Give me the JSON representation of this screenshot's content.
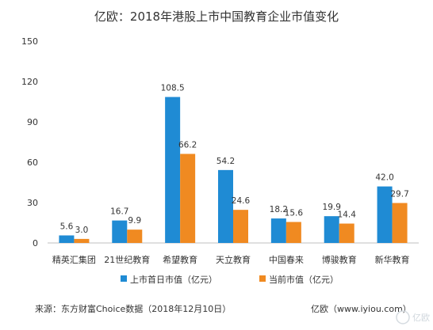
{
  "chart_data": {
    "type": "bar",
    "title": "亿欧：2018年港股上市中国教育企业市值变化",
    "categories": [
      "精英汇集团",
      "21世纪教育",
      "希望教育",
      "天立教育",
      "中国春来",
      "博骏教育",
      "新华教育"
    ],
    "series": [
      {
        "name": "上市首日市值（亿元）",
        "color": "#1f8bd4",
        "values": [
          5.6,
          16.7,
          108.5,
          54.2,
          18.2,
          19.9,
          42.0
        ]
      },
      {
        "name": "当前市值（亿元）",
        "color": "#f08a21",
        "values": [
          3.0,
          9.9,
          66.2,
          24.6,
          15.6,
          14.4,
          29.7
        ]
      }
    ],
    "value_labels": [
      [
        "5.6",
        "16.7",
        "108.5",
        "54.2",
        "18.2",
        "19.9",
        "42.0"
      ],
      [
        "3.0",
        "9.9",
        "66.2",
        "24.6",
        "15.6",
        "14.4",
        "29.7"
      ]
    ],
    "yticks": [
      0,
      30,
      60,
      90,
      120,
      150
    ],
    "ylim": [
      0,
      150
    ],
    "xlabel": "",
    "ylabel": "",
    "grid": false,
    "legend_position": "bottom"
  },
  "footer": {
    "source": "来源：东方财富Choice数据（2018年12月10日）",
    "credit": "亿欧（www.iyiou.com）"
  },
  "watermark": {
    "text": "亿欧"
  }
}
